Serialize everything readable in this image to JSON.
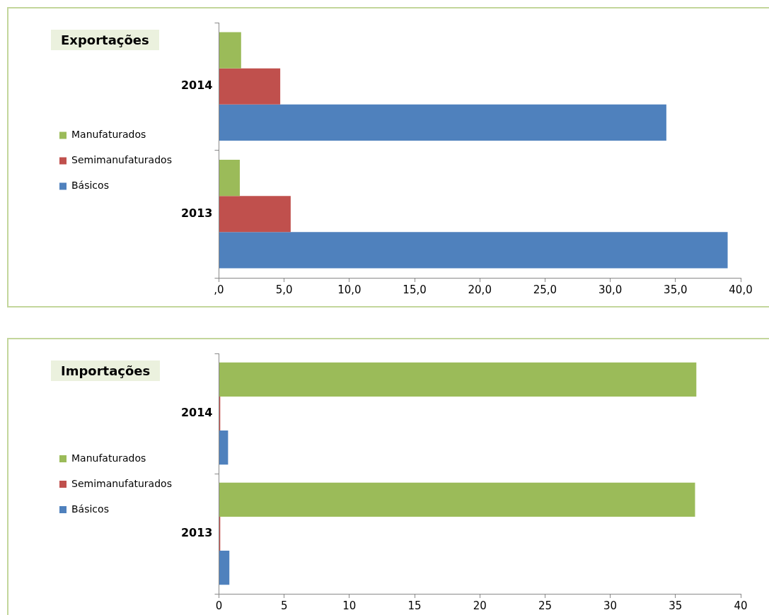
{
  "chart_data": [
    {
      "type": "bar",
      "title": "Exportações",
      "orientation": "horizontal",
      "categories": [
        "2014",
        "2013"
      ],
      "series": [
        {
          "name": "Manufaturados",
          "color": "#9bbb59",
          "values": [
            1.7,
            1.6
          ]
        },
        {
          "name": "Semimanufaturados",
          "color": "#c0504d",
          "values": [
            4.7,
            5.5
          ]
        },
        {
          "name": "Básicos",
          "color": "#4f81bd",
          "values": [
            34.3,
            39.0
          ]
        }
      ],
      "xlim": [
        0,
        40
      ],
      "xticks": [
        {
          "value": 0,
          "label": ",0"
        },
        {
          "value": 5,
          "label": "5,0"
        },
        {
          "value": 10,
          "label": "10,0"
        },
        {
          "value": 15,
          "label": "15,0"
        },
        {
          "value": 20,
          "label": "20,0"
        },
        {
          "value": 25,
          "label": "25,0"
        },
        {
          "value": 30,
          "label": "30,0"
        },
        {
          "value": 35,
          "label": "35,0"
        },
        {
          "value": 40,
          "label": "40,0"
        }
      ],
      "grid": false,
      "legend": "left"
    },
    {
      "type": "bar",
      "title": "Importações",
      "orientation": "horizontal",
      "categories": [
        "2014",
        "2013"
      ],
      "series": [
        {
          "name": "Manufaturados",
          "color": "#9bbb59",
          "values": [
            36.6,
            36.5
          ]
        },
        {
          "name": "Semimanufaturados",
          "color": "#c0504d",
          "values": [
            0.1,
            0.1
          ]
        },
        {
          "name": "Básicos",
          "color": "#4f81bd",
          "values": [
            0.7,
            0.8
          ]
        }
      ],
      "xlim": [
        0,
        40
      ],
      "xticks": [
        0,
        5,
        10,
        15,
        20,
        25,
        30,
        35,
        40
      ],
      "grid": false,
      "legend": "left"
    }
  ]
}
